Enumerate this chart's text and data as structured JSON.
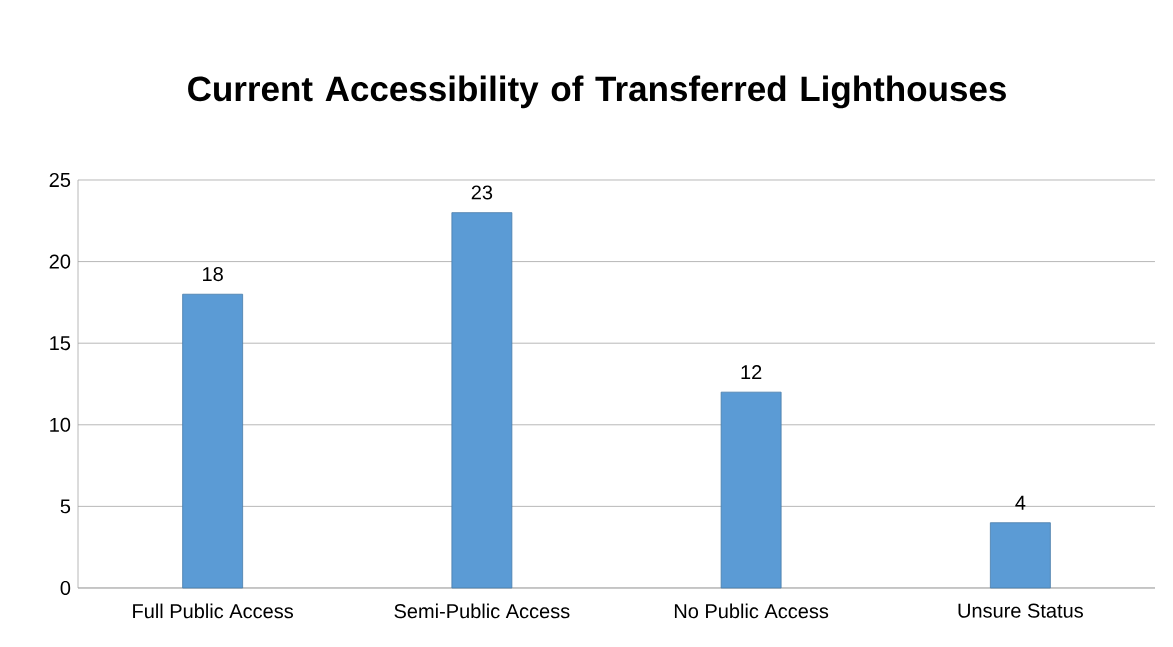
{
  "chart_data": {
    "type": "bar",
    "title": "Current Accessibility of Transferred Lighthouses",
    "categories": [
      "Full Public Access",
      "Semi-Public Access",
      "No Public Access",
      "Unsure Status"
    ],
    "values": [
      18,
      23,
      12,
      4
    ],
    "color": "#5b9bd5",
    "ylim": [
      0,
      25
    ],
    "yticks": [
      0,
      5,
      10,
      15,
      20,
      25
    ],
    "grid": "y",
    "data_labels": true
  }
}
